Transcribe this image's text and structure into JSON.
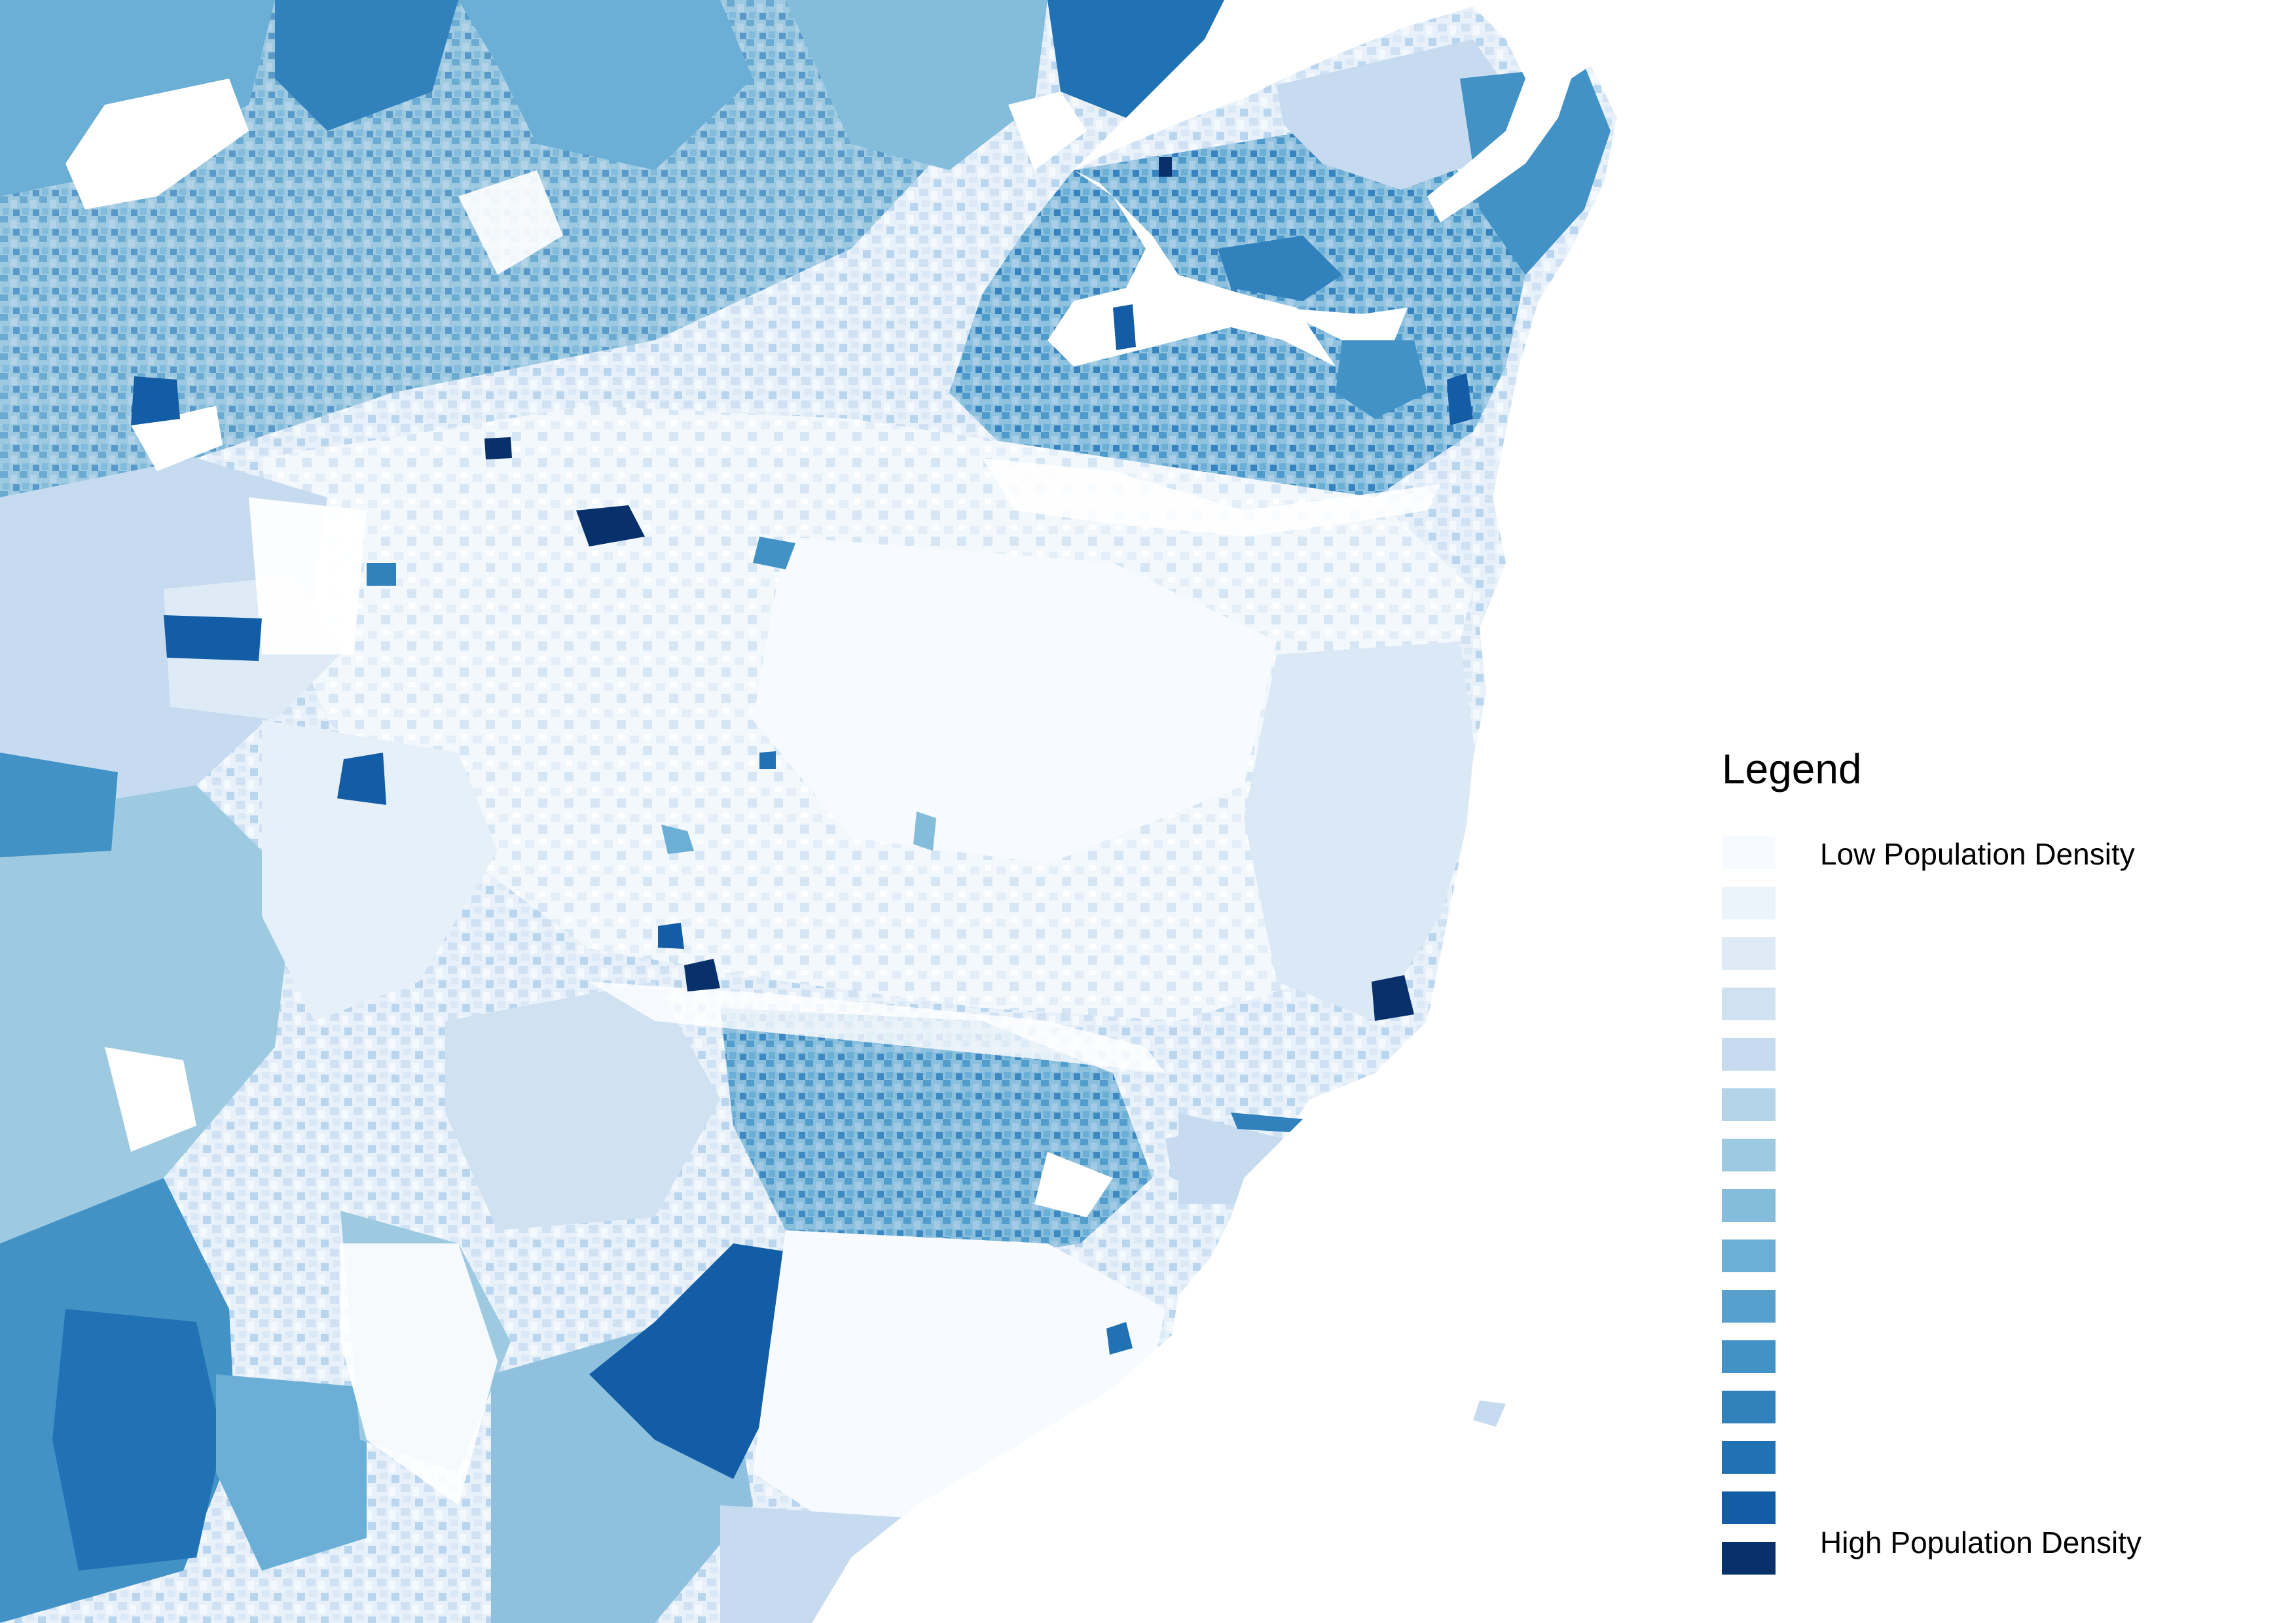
{
  "legend": {
    "title": "Legend",
    "low_label": "Low Population Density",
    "high_label": "High Population Density",
    "classes": [
      "#f7fbff",
      "#ebf3fb",
      "#deebf7",
      "#d0e2f2",
      "#c6dbef",
      "#b3d3e8",
      "#9ecae1",
      "#84bcdb",
      "#6baed6",
      "#57a0ce",
      "#4292c6",
      "#3181bd",
      "#2171b5",
      "#125da6",
      "#08306b"
    ]
  },
  "map": {
    "projection_note": "",
    "background_color": "#ffffff"
  }
}
